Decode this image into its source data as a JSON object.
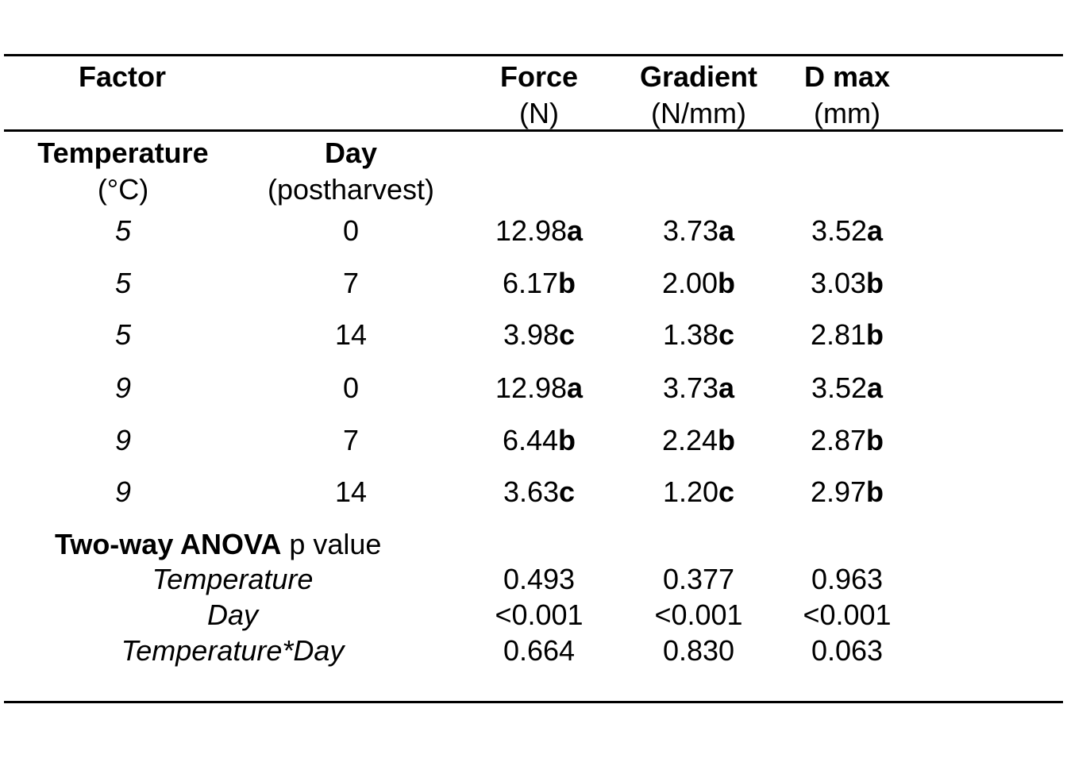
{
  "header": {
    "factor": "Factor",
    "force": "Force",
    "force_unit": "(N)",
    "gradient": "Gradient",
    "gradient_unit": "(N/mm)",
    "dmax": "D max",
    "dmax_unit": "(mm)"
  },
  "subheader": {
    "temperature": "Temperature",
    "temperature_unit": "(°C)",
    "day": "Day",
    "day_unit": "(postharvest)"
  },
  "rows": [
    {
      "temp": "5",
      "day": "0",
      "force": "12.98",
      "force_l": "a",
      "gradient": "3.73",
      "gradient_l": "a",
      "dmax": "3.52",
      "dmax_l": "a"
    },
    {
      "temp": "5",
      "day": "7",
      "force": "6.17",
      "force_l": "b",
      "gradient": "2.00",
      "gradient_l": "b",
      "dmax": "3.03",
      "dmax_l": "b"
    },
    {
      "temp": "5",
      "day": "14",
      "force": "3.98",
      "force_l": "c",
      "gradient": "1.38",
      "gradient_l": "c",
      "dmax": "2.81",
      "dmax_l": "b"
    },
    {
      "temp": "9",
      "day": "0",
      "force": "12.98",
      "force_l": "a",
      "gradient": "3.73",
      "gradient_l": "a",
      "dmax": "3.52",
      "dmax_l": "a"
    },
    {
      "temp": "9",
      "day": "7",
      "force": "6.44",
      "force_l": "b",
      "gradient": "2.24",
      "gradient_l": "b",
      "dmax": "2.87",
      "dmax_l": "b"
    },
    {
      "temp": "9",
      "day": "14",
      "force": "3.63",
      "force_l": "c",
      "gradient": "1.20",
      "gradient_l": "c",
      "dmax": "2.97",
      "dmax_l": "b"
    }
  ],
  "anova": {
    "title_bold": "Two-way ANOVA",
    "title_rest": " p value",
    "rows": [
      {
        "label": "Temperature",
        "force": "0.493",
        "gradient": "0.377",
        "dmax": "0.963"
      },
      {
        "label": "Day",
        "force": "<0.001",
        "gradient": "<0.001",
        "dmax": "<0.001"
      },
      {
        "label": "Temperature*Day",
        "force": "0.664",
        "gradient": "0.830",
        "dmax": "0.063"
      }
    ]
  }
}
